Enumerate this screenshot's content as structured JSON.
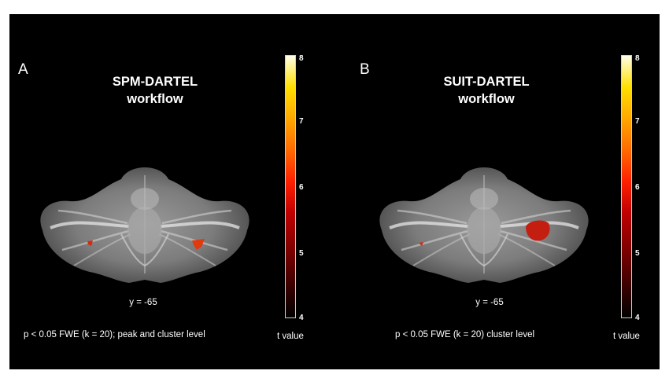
{
  "colorbar": {
    "min": 4,
    "max": 8,
    "ticks": [
      "8",
      "7",
      "6",
      "5",
      "4"
    ],
    "tick_values": [
      8,
      7,
      6,
      5,
      4
    ],
    "label": "t value",
    "colors": [
      "#000000",
      "#7a0000",
      "#ff2000",
      "#ffa800",
      "#ffffe8"
    ]
  },
  "panels": [
    {
      "letter": "A",
      "title_line1": "SPM-DARTEL",
      "title_line2": "workflow",
      "slice": "y = -65",
      "caption": "p < 0.05 FWE (k = 20); peak and cluster level",
      "activation_color": "#d42a10"
    },
    {
      "letter": "B",
      "title_line1": "SUIT-DARTEL",
      "title_line2": "workflow",
      "slice": "y = -65",
      "caption": "p < 0.05 FWE (k = 20) cluster level",
      "activation_color": "#c41e10"
    }
  ]
}
